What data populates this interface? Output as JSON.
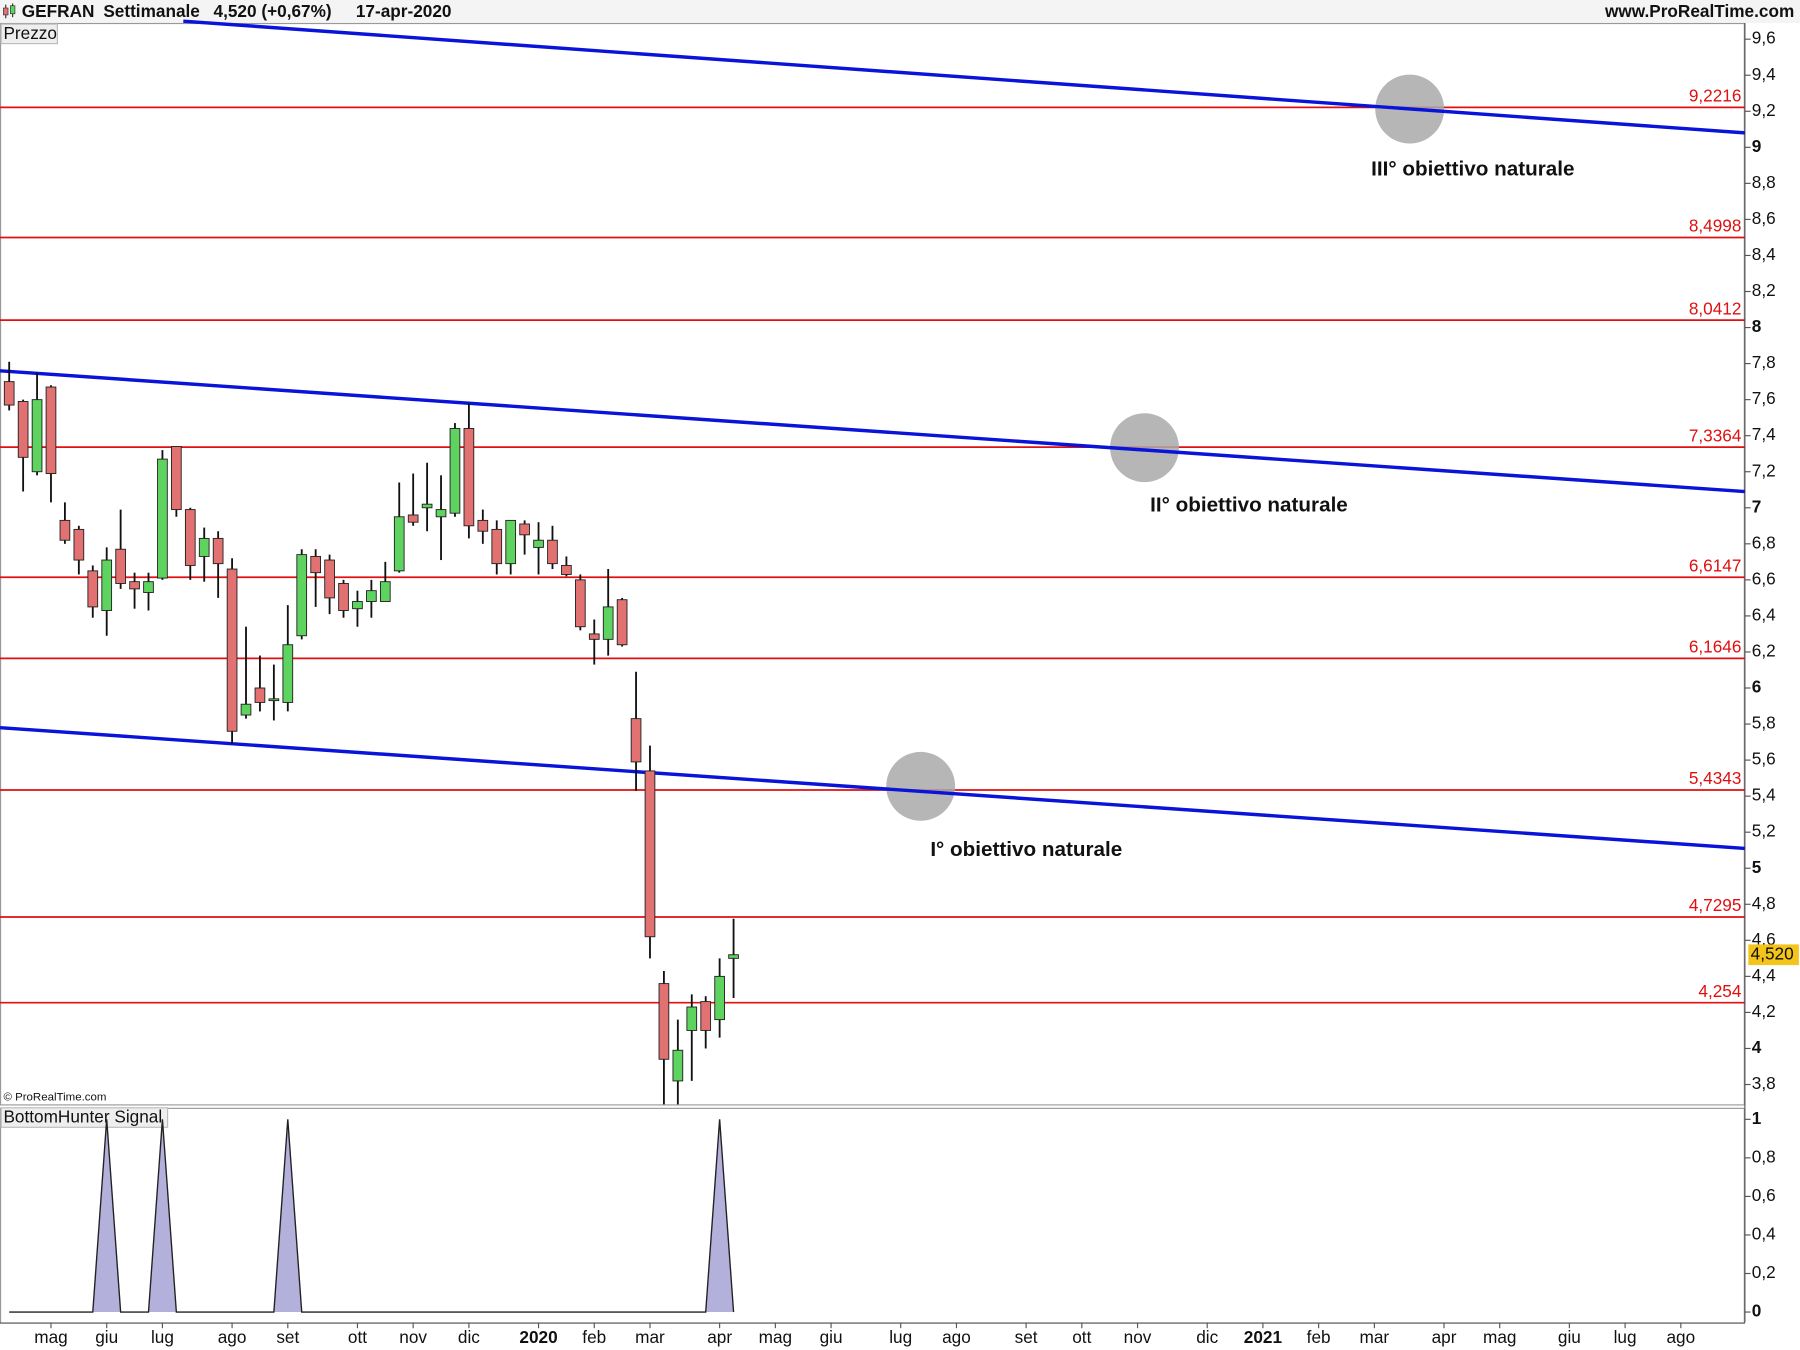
{
  "header": {
    "symbol": "GEFRAN",
    "period": "Settimanale",
    "quote": "4,520 (+0,67%)",
    "date": "17-apr-2020",
    "site": "www.ProRealTime.com"
  },
  "chart_data": [
    {
      "type": "candlestick",
      "title": "Prezzo",
      "copyright": "© ProRealTime.com",
      "open": [
        7.7,
        7.59,
        7.2,
        7.67,
        6.93,
        6.88,
        6.65,
        6.43,
        6.77,
        6.59,
        6.53,
        6.61,
        7.34,
        6.99,
        6.73,
        6.83,
        6.66,
        5.85,
        6.0,
        5.93,
        5.92,
        6.29,
        6.73,
        6.71,
        6.58,
        6.44,
        6.48,
        6.48,
        6.65,
        6.96,
        7.0,
        6.95,
        6.97,
        7.44,
        6.93,
        6.88,
        6.69,
        6.91,
        6.78,
        6.82,
        6.68,
        6.6,
        6.3,
        6.27,
        6.49,
        5.83,
        5.54,
        4.36,
        3.82,
        4.1,
        4.26,
        4.16,
        4.5
      ],
      "high": [
        7.81,
        7.6,
        7.75,
        7.68,
        7.03,
        6.9,
        6.68,
        6.78,
        6.99,
        6.64,
        6.64,
        7.32,
        7.34,
        7.0,
        6.89,
        6.87,
        6.72,
        6.34,
        6.18,
        6.13,
        6.46,
        6.77,
        6.77,
        6.74,
        6.6,
        6.54,
        6.6,
        6.7,
        7.14,
        7.19,
        7.25,
        7.18,
        7.47,
        7.58,
        6.99,
        6.93,
        6.93,
        6.93,
        6.92,
        6.9,
        6.73,
        6.63,
        6.38,
        6.66,
        6.5,
        6.09,
        5.68,
        4.43,
        4.16,
        4.3,
        4.29,
        4.5,
        4.72
      ],
      "low": [
        7.54,
        7.09,
        7.18,
        7.03,
        6.8,
        6.63,
        6.39,
        6.29,
        6.55,
        6.44,
        6.43,
        6.6,
        6.95,
        6.6,
        6.59,
        6.5,
        5.69,
        5.83,
        5.87,
        5.82,
        5.87,
        6.27,
        6.45,
        6.41,
        6.39,
        6.34,
        6.39,
        6.48,
        6.64,
        6.9,
        6.87,
        6.71,
        6.95,
        6.83,
        6.8,
        6.63,
        6.63,
        6.74,
        6.63,
        6.66,
        6.62,
        6.32,
        6.13,
        6.18,
        6.23,
        5.43,
        4.5,
        3.69,
        3.69,
        3.82,
        4.0,
        4.06,
        4.28
      ],
      "close": [
        7.57,
        7.28,
        7.6,
        7.19,
        6.82,
        6.71,
        6.45,
        6.71,
        6.58,
        6.55,
        6.59,
        7.27,
        6.99,
        6.68,
        6.83,
        6.69,
        5.76,
        5.91,
        5.92,
        5.94,
        6.24,
        6.74,
        6.64,
        6.5,
        6.43,
        6.48,
        6.54,
        6.59,
        6.95,
        6.92,
        7.02,
        6.99,
        7.44,
        6.9,
        6.87,
        6.69,
        6.93,
        6.85,
        6.82,
        6.69,
        6.63,
        6.34,
        6.27,
        6.45,
        6.24,
        5.59,
        4.62,
        3.94,
        3.99,
        4.23,
        4.1,
        4.4,
        4.52
      ],
      "up_color": "#5fd35f",
      "down_color": "#e27272",
      "xlim": [
        -0.66,
        124.6
      ],
      "xticks": [
        {
          "value": 3,
          "label": "mag"
        },
        {
          "value": 7,
          "label": "giu"
        },
        {
          "value": 11,
          "label": "lug"
        },
        {
          "value": 16,
          "label": "ago"
        },
        {
          "value": 20,
          "label": "set"
        },
        {
          "value": 25,
          "label": "ott"
        },
        {
          "value": 29,
          "label": "nov"
        },
        {
          "value": 33,
          "label": "dic"
        },
        {
          "value": 38,
          "label": "2020"
        },
        {
          "value": 42,
          "label": "feb"
        },
        {
          "value": 46,
          "label": "mar"
        },
        {
          "value": 51,
          "label": "apr"
        },
        {
          "value": 55,
          "label": "mag"
        },
        {
          "value": 59,
          "label": "giu"
        },
        {
          "value": 64,
          "label": "lug"
        },
        {
          "value": 68,
          "label": "ago"
        },
        {
          "value": 73,
          "label": "set"
        },
        {
          "value": 77,
          "label": "ott"
        },
        {
          "value": 81,
          "label": "nov"
        },
        {
          "value": 86,
          "label": "dic"
        },
        {
          "value": 90,
          "label": "2021"
        },
        {
          "value": 94,
          "label": "feb"
        },
        {
          "value": 98,
          "label": "mar"
        },
        {
          "value": 103,
          "label": "apr"
        },
        {
          "value": 107,
          "label": "mag"
        },
        {
          "value": 112,
          "label": "giu"
        },
        {
          "value": 116,
          "label": "lug"
        },
        {
          "value": 120,
          "label": "ago"
        }
      ],
      "ylim": [
        3.69,
        9.69
      ],
      "yticks": [
        {
          "value": 3.8,
          "label": "3,8"
        },
        4,
        {
          "value": 4.2,
          "label": "4,2"
        },
        {
          "value": 4.4,
          "label": "4,4"
        },
        {
          "value": 4.6,
          "label": "4,6"
        },
        {
          "value": 4.8,
          "label": "4,8"
        },
        5,
        {
          "value": 5.2,
          "label": "5,2"
        },
        {
          "value": 5.4,
          "label": "5,4"
        },
        {
          "value": 5.6,
          "label": "5,6"
        },
        {
          "value": 5.8,
          "label": "5,8"
        },
        6,
        {
          "value": 6.2,
          "label": "6,2"
        },
        {
          "value": 6.4,
          "label": "6,4"
        },
        {
          "value": 6.6,
          "label": "6,6"
        },
        {
          "value": 6.8,
          "label": "6,8"
        },
        7,
        {
          "value": 7.2,
          "label": "7,2"
        },
        {
          "value": 7.4,
          "label": "7,4"
        },
        {
          "value": 7.6,
          "label": "7,6"
        },
        {
          "value": 7.8,
          "label": "7,8"
        },
        8,
        {
          "value": 8.2,
          "label": "8,2"
        },
        {
          "value": 8.4,
          "label": "8,4"
        },
        {
          "value": 8.6,
          "label": "8,6"
        },
        {
          "value": 8.8,
          "label": "8,8"
        },
        9,
        {
          "value": 9.2,
          "label": "9,2"
        },
        {
          "value": 9.4,
          "label": "9,4"
        },
        {
          "value": 9.6,
          "label": "9,6"
        }
      ],
      "last_price": {
        "value": 4.52,
        "label": "4,520"
      },
      "level_color": "#e01010",
      "levels": [
        {
          "value": 9.2216,
          "label": "9,2216"
        },
        {
          "value": 8.4998,
          "label": "8,4998"
        },
        {
          "value": 8.0412,
          "label": "8,0412"
        },
        {
          "value": 7.3364,
          "label": "7,3364"
        },
        {
          "value": 6.6147,
          "label": "6,6147"
        },
        {
          "value": 6.1646,
          "label": "6,1646"
        },
        {
          "value": 5.4343,
          "label": "5,4343"
        },
        {
          "value": 4.7295,
          "label": "4,7295"
        },
        {
          "value": 4.254,
          "label": "4,254"
        }
      ],
      "trendline_color": "#0a14d8",
      "trendlines": [
        {
          "x": [
            12.5,
            124.6
          ],
          "y": [
            9.7,
            9.08
          ]
        },
        {
          "x": [
            -0.66,
            124.6
          ],
          "y": [
            7.76,
            7.09
          ]
        },
        {
          "x": [
            -0.66,
            124.6
          ],
          "y": [
            5.78,
            5.11
          ]
        }
      ],
      "annotations": [
        "III° obiettivo naturale",
        "II° obiettivo naturale",
        "I° obiettivo naturale"
      ]
    },
    {
      "type": "area",
      "title": "BottomHunter Signal",
      "color": "#b4b0dc",
      "values": [
        0,
        0,
        0,
        0,
        0,
        0,
        0,
        1,
        0,
        0,
        0,
        1,
        0,
        0,
        0,
        0,
        0,
        0,
        0,
        0,
        1,
        0,
        0,
        0,
        0,
        0,
        0,
        0,
        0,
        0,
        0,
        0,
        0,
        0,
        0,
        0,
        0,
        0,
        0,
        0,
        0,
        0,
        0,
        0,
        0,
        0,
        0,
        0,
        0,
        0,
        0,
        1,
        0
      ],
      "ylim": [
        -0.054,
        1.06
      ],
      "yticks": [
        0,
        {
          "value": 0.2,
          "label": "0,2"
        },
        {
          "value": 0.4,
          "label": "0,4"
        },
        {
          "value": 0.6,
          "label": "0,6"
        },
        {
          "value": 0.8,
          "label": "0,8"
        },
        1
      ]
    }
  ]
}
